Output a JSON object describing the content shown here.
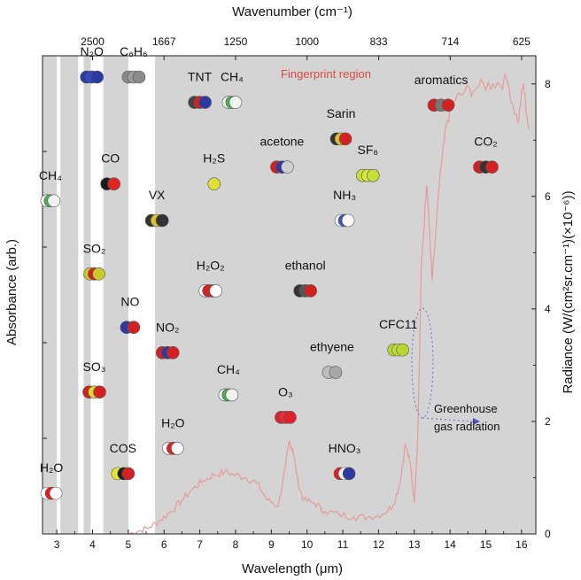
{
  "chart_data": {
    "type": "line",
    "xlabel": "Wavelength (μm)",
    "ylabel": "Absorbance (arb.)",
    "y2label": "Radiance (W/(cm²sr.cm⁻¹)(×10⁻⁶))",
    "top_axis_label": "Wavenumber (cm⁻¹)",
    "xlim": [
      2.6,
      16.4
    ],
    "y2lim": [
      0,
      8.5
    ],
    "x_ticks": [
      "3",
      "4",
      "5",
      "6",
      "7",
      "8",
      "9",
      "10",
      "11",
      "12",
      "13",
      "14",
      "15",
      "16"
    ],
    "top_ticks": [
      "2500",
      "1667",
      "1250",
      "1000",
      "833",
      "714",
      "625"
    ],
    "y2_ticks": [
      "0",
      "2",
      "4",
      "6",
      "8"
    ],
    "background_color": "#d4d4d4",
    "curve_color": "#e89a9a",
    "white_bands": [
      [
        3.0,
        3.1
      ],
      [
        3.6,
        3.75
      ],
      [
        3.95,
        4.3
      ],
      [
        5.0,
        5.75
      ]
    ],
    "radiance_series": {
      "x": [
        5.0,
        5.3,
        5.6,
        5.9,
        6.2,
        6.5,
        6.8,
        7.1,
        7.4,
        7.7,
        8.0,
        8.3,
        8.6,
        8.9,
        9.2,
        9.4,
        9.5,
        9.6,
        9.75,
        9.9,
        10.2,
        10.5,
        10.9,
        11.3,
        11.7,
        12.1,
        12.4,
        12.6,
        12.75,
        12.9,
        13.0,
        13.1,
        13.2,
        13.35,
        13.5,
        13.7,
        13.9,
        14.1,
        14.4,
        14.8,
        15.2,
        15.6,
        15.9,
        16.05,
        16.2
      ],
      "y": [
        0.0,
        0.05,
        0.12,
        0.25,
        0.4,
        0.6,
        0.8,
        0.95,
        1.05,
        1.1,
        1.05,
        1.0,
        0.9,
        0.6,
        0.5,
        1.2,
        1.65,
        1.5,
        0.9,
        0.6,
        0.55,
        0.4,
        0.35,
        0.3,
        0.3,
        0.35,
        0.5,
        0.9,
        1.6,
        1.2,
        0.55,
        1.8,
        4.8,
        6.2,
        4.5,
        6.2,
        7.3,
        7.7,
        7.85,
        7.95,
        8.0,
        8.05,
        7.3,
        8.0,
        7.2
      ]
    },
    "annotations": {
      "fingerprint": "Fingerprint region",
      "greenhouse_line1": "Greenhouse",
      "greenhouse_line2": "gas radiation"
    },
    "molecules": [
      {
        "text": "N₂O",
        "x": 3.98,
        "yv": 8.5,
        "icon": "n2o-icon"
      },
      {
        "text": "C₆H₆",
        "x": 5.15,
        "yv": 8.5,
        "icon": "benzene-icon"
      },
      {
        "text": "TNT",
        "x": 7.0,
        "yv": 8.05,
        "icon": "tnt-icon"
      },
      {
        "text": "CH₄",
        "x": 7.9,
        "yv": 8.05,
        "icon": "ch4-icon"
      },
      {
        "text": "aromatics",
        "x": 13.75,
        "yv": 8.0,
        "icon": "aromatics-icon"
      },
      {
        "text": "Sarin",
        "x": 10.95,
        "yv": 7.4,
        "icon": "sarin-icon"
      },
      {
        "text": "acetone",
        "x": 9.3,
        "yv": 6.9,
        "icon": "acetone-icon"
      },
      {
        "text": "SF₆",
        "x": 11.7,
        "yv": 6.75,
        "icon": "sf6-icon"
      },
      {
        "text": "CO₂",
        "x": 15.0,
        "yv": 6.9,
        "icon": "co2-icon"
      },
      {
        "text": "CO",
        "x": 4.5,
        "yv": 6.6,
        "icon": "co-icon"
      },
      {
        "text": "H₂S",
        "x": 7.4,
        "yv": 6.6,
        "icon": "h2s-icon"
      },
      {
        "text": "CH₄",
        "x": 2.82,
        "yv": 6.3,
        "icon": "ch4-icon"
      },
      {
        "text": "VX",
        "x": 5.8,
        "yv": 5.95,
        "icon": "vx-icon"
      },
      {
        "text": "NH₃",
        "x": 11.05,
        "yv": 5.95,
        "icon": "nh3-icon"
      },
      {
        "text": "SO₂",
        "x": 4.05,
        "yv": 5.0,
        "icon": "so2-icon"
      },
      {
        "text": "H₂O₂",
        "x": 7.3,
        "yv": 4.7,
        "icon": "h2o2-icon"
      },
      {
        "text": "ethanol",
        "x": 9.95,
        "yv": 4.7,
        "icon": "ethanol-icon"
      },
      {
        "text": "NO",
        "x": 5.05,
        "yv": 4.05,
        "icon": "no-icon"
      },
      {
        "text": "NO₂",
        "x": 6.1,
        "yv": 3.6,
        "icon": "no2-icon"
      },
      {
        "text": "CFC11",
        "x": 12.55,
        "yv": 3.65,
        "icon": "cfc11-icon"
      },
      {
        "text": "ethyene",
        "x": 10.7,
        "yv": 3.25,
        "icon": "ethylene-icon"
      },
      {
        "text": "SO₃",
        "x": 4.05,
        "yv": 2.9,
        "icon": "so3-icon"
      },
      {
        "text": "CH₄",
        "x": 7.8,
        "yv": 2.85,
        "icon": "ch4-icon"
      },
      {
        "text": "O₃",
        "x": 9.4,
        "yv": 2.45,
        "icon": "o3-icon"
      },
      {
        "text": "H₂O",
        "x": 6.25,
        "yv": 1.9,
        "icon": "h2o-icon"
      },
      {
        "text": "COS",
        "x": 4.85,
        "yv": 1.45,
        "icon": "cos-icon"
      },
      {
        "text": "HNO₃",
        "x": 11.05,
        "yv": 1.45,
        "icon": "hno3-icon"
      },
      {
        "text": "H₂O",
        "x": 2.85,
        "yv": 1.1,
        "icon": "h2o-icon"
      }
    ]
  }
}
